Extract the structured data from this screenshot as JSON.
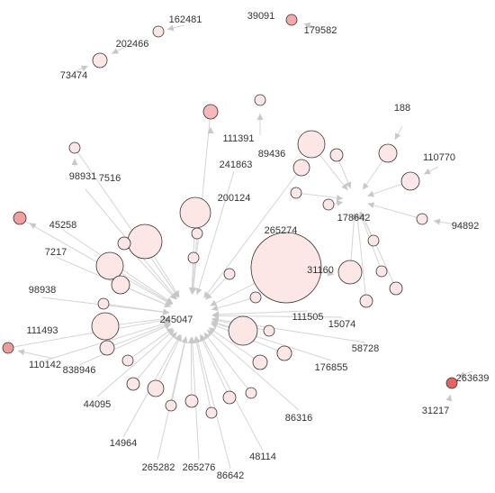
{
  "nodes": [
    {
      "label": "162481"
    },
    {
      "label": "39091"
    },
    {
      "label": "179582"
    },
    {
      "label": "202466"
    },
    {
      "label": "73474"
    },
    {
      "label": "188"
    },
    {
      "label": "111391"
    },
    {
      "label": "89436"
    },
    {
      "label": "110770"
    },
    {
      "label": "241863"
    },
    {
      "label": "98931"
    },
    {
      "label": "7516"
    },
    {
      "label": "200124"
    },
    {
      "label": "45258"
    },
    {
      "label": "178642"
    },
    {
      "label": "94892"
    },
    {
      "label": "265274"
    },
    {
      "label": "7217"
    },
    {
      "label": "31160"
    },
    {
      "label": "98938"
    },
    {
      "label": "245047"
    },
    {
      "label": "111505"
    },
    {
      "label": "15074"
    },
    {
      "label": "111493"
    },
    {
      "label": "110142"
    },
    {
      "label": "58728"
    },
    {
      "label": "176855"
    },
    {
      "label": "838946"
    },
    {
      "label": "263639"
    },
    {
      "label": "31217"
    },
    {
      "label": "44095"
    },
    {
      "label": "14964"
    },
    {
      "label": "86316"
    },
    {
      "label": "48114"
    },
    {
      "label": "265282"
    },
    {
      "label": "265276"
    },
    {
      "label": "86642"
    }
  ]
}
